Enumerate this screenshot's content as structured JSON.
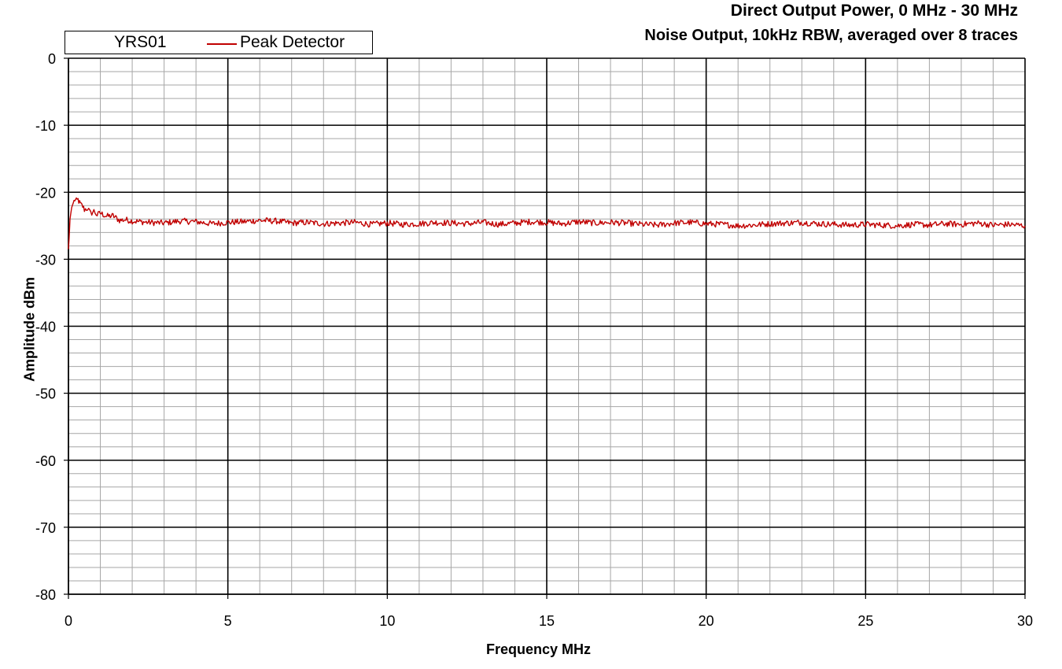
{
  "chart_data": {
    "type": "line",
    "title": "Direct Output Power, 0 MHz - 30 MHz",
    "subtitle": "Noise Output, 10kHz RBW, averaged over 8 traces",
    "xlabel": "Frequency MHz",
    "ylabel": "Amplitude dBm",
    "xlim": [
      0,
      30
    ],
    "ylim": [
      -80,
      0
    ],
    "xticks": [
      "0",
      "5",
      "10",
      "15",
      "20",
      "25",
      "30"
    ],
    "yticks": [
      "0",
      "-10",
      "-20",
      "-30",
      "-40",
      "-50",
      "-60",
      "-70",
      "-80"
    ],
    "grid": true,
    "legend": {
      "placement": "top-left",
      "group_label": "YRS01",
      "entries": [
        "Peak Detector"
      ]
    },
    "series": [
      {
        "name": "Peak Detector",
        "color": "#c00000",
        "x": [
          0,
          0.02,
          0.05,
          0.1,
          0.15,
          0.2,
          0.25,
          0.3,
          0.35,
          0.4,
          0.45,
          0.5,
          0.6,
          0.7,
          0.8,
          0.9,
          1.0,
          1.2,
          1.4,
          1.6,
          1.8,
          2.0,
          2.5,
          3.0,
          3.5,
          4.0,
          4.5,
          5.0,
          5.5,
          6.0,
          6.5,
          7.0,
          7.5,
          8.0,
          8.5,
          9.0,
          9.5,
          10.0,
          10.5,
          11.0,
          11.5,
          12.0,
          12.5,
          13.0,
          13.5,
          14.0,
          14.5,
          15.0,
          15.5,
          16.0,
          16.5,
          17.0,
          17.5,
          18.0,
          18.5,
          19.0,
          19.5,
          20.0,
          20.5,
          21.0,
          21.5,
          22.0,
          22.5,
          23.0,
          23.5,
          24.0,
          24.5,
          25.0,
          25.5,
          26.0,
          26.5,
          27.0,
          27.5,
          28.0,
          28.5,
          29.0,
          29.5,
          30.0
        ],
        "y": [
          -28.5,
          -27.0,
          -24.0,
          -22.3,
          -21.6,
          -21.1,
          -21.3,
          -21.1,
          -21.6,
          -21.9,
          -22.1,
          -22.6,
          -22.4,
          -23.2,
          -22.8,
          -23.4,
          -23.1,
          -23.6,
          -23.5,
          -24.2,
          -24.1,
          -24.3,
          -24.5,
          -24.6,
          -24.3,
          -24.4,
          -24.7,
          -24.5,
          -24.4,
          -24.2,
          -24.3,
          -24.6,
          -24.5,
          -24.7,
          -24.6,
          -24.5,
          -24.8,
          -24.6,
          -24.8,
          -24.7,
          -24.5,
          -24.6,
          -24.7,
          -24.5,
          -24.8,
          -24.6,
          -24.4,
          -24.5,
          -24.7,
          -24.4,
          -24.6,
          -24.5,
          -24.6,
          -24.8,
          -24.9,
          -24.6,
          -24.5,
          -24.7,
          -24.8,
          -25.0,
          -24.9,
          -24.7,
          -24.6,
          -24.5,
          -24.7,
          -24.8,
          -24.9,
          -24.8,
          -24.9,
          -25.0,
          -24.8,
          -24.9,
          -24.7,
          -24.8,
          -24.6,
          -24.9,
          -24.8,
          -25.0
        ]
      }
    ]
  }
}
